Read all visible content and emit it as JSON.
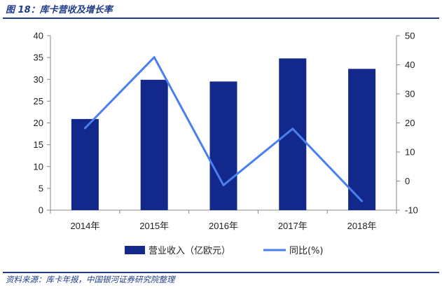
{
  "header": {
    "title": "图 18：库卡营收及增长率"
  },
  "footer": {
    "source": "资料来源：库卡年报，中国银河证券研究院整理"
  },
  "chart_data": {
    "type": "bar+line",
    "categories": [
      "2014年",
      "2015年",
      "2016年",
      "2017年",
      "2018年"
    ],
    "series": [
      {
        "name": "营业收入（亿欧元）",
        "type": "bar",
        "axis": "left",
        "color": "#12288a",
        "values": [
          20.9,
          29.9,
          29.5,
          34.8,
          32.4
        ]
      },
      {
        "name": "同比(%)",
        "type": "line",
        "axis": "right",
        "color": "#4a7ff0",
        "values": [
          18.2,
          42.6,
          -1.4,
          18.0,
          -6.9
        ]
      }
    ],
    "y_left": {
      "min": 0,
      "max": 40,
      "ticks": [
        0,
        5,
        10,
        15,
        20,
        25,
        30,
        35,
        40
      ]
    },
    "y_right": {
      "min": -10,
      "max": 50,
      "ticks": [
        -10,
        0,
        10,
        20,
        30,
        40,
        50
      ]
    },
    "legend_position": "bottom"
  }
}
